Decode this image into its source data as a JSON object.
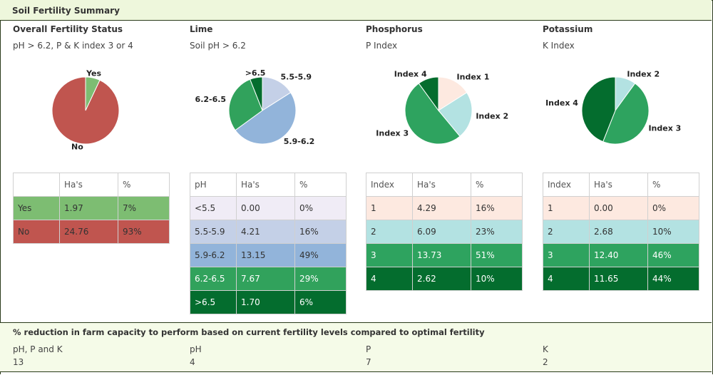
{
  "header": {
    "title": "Soil Fertility Summary"
  },
  "panels": [
    {
      "title": "Overall Fertility Status",
      "subtitle": "pH > 6.2, P & K index 3 or 4",
      "columns": [
        null,
        "Ha's",
        "%"
      ],
      "rows": [
        {
          "label": "Yes",
          "ha": "1.97",
          "pct": 7,
          "pct_label": "7%",
          "color": "#7dbd72",
          "text_color": "#333333"
        },
        {
          "label": "No",
          "ha": "24.76",
          "pct": 93,
          "pct_label": "93%",
          "color": "#c0554f",
          "text_color": "#333333"
        }
      ],
      "pie_labels": [
        "Yes",
        "No"
      ]
    },
    {
      "title": "Lime",
      "subtitle": "Soil pH > 6.2",
      "columns": [
        "pH",
        "Ha's",
        "%"
      ],
      "rows": [
        {
          "label": "<5.5",
          "ha": "0.00",
          "pct": 0,
          "pct_label": "0%",
          "color": "#f0ecf6",
          "text_color": "#333333"
        },
        {
          "label": "5.5-5.9",
          "ha": "4.21",
          "pct": 16,
          "pct_label": "16%",
          "color": "#c4d0e7",
          "text_color": "#333333"
        },
        {
          "label": "5.9-6.2",
          "ha": "13.15",
          "pct": 49,
          "pct_label": "49%",
          "color": "#92b4da",
          "text_color": "#333333"
        },
        {
          "label": "6.2-6.5",
          "ha": "7.67",
          "pct": 29,
          "pct_label": "29%",
          "color": "#31a25c",
          "text_color": "#ffffff"
        },
        {
          "label": ">6.5",
          "ha": "1.70",
          "pct": 6,
          "pct_label": "6%",
          "color": "#046d2e",
          "text_color": "#ffffff"
        }
      ],
      "pie_labels": [
        null,
        "5.5-5.9",
        "5.9-6.2",
        "6.2-6.5",
        ">6.5"
      ]
    },
    {
      "title": "Phosphorus",
      "subtitle": "P Index",
      "columns": [
        "Index",
        "Ha's",
        "%"
      ],
      "rows": [
        {
          "label": "1",
          "ha": "4.29",
          "pct": 16,
          "pct_label": "16%",
          "color": "#fde9e0",
          "text_color": "#333333"
        },
        {
          "label": "2",
          "ha": "6.09",
          "pct": 23,
          "pct_label": "23%",
          "color": "#b3e2e2",
          "text_color": "#333333"
        },
        {
          "label": "3",
          "ha": "13.73",
          "pct": 51,
          "pct_label": "51%",
          "color": "#2ea35f",
          "text_color": "#ffffff"
        },
        {
          "label": "4",
          "ha": "2.62",
          "pct": 10,
          "pct_label": "10%",
          "color": "#046d2e",
          "text_color": "#ffffff"
        }
      ],
      "pie_labels": [
        "Index 1",
        "Index 2",
        "Index 3",
        "Index 4"
      ]
    },
    {
      "title": "Potassium",
      "subtitle": "K Index",
      "columns": [
        "Index",
        "Ha's",
        "%"
      ],
      "rows": [
        {
          "label": "1",
          "ha": "0.00",
          "pct": 0,
          "pct_label": "0%",
          "color": "#fde9e0",
          "text_color": "#333333"
        },
        {
          "label": "2",
          "ha": "2.68",
          "pct": 10,
          "pct_label": "10%",
          "color": "#b3e2e2",
          "text_color": "#333333"
        },
        {
          "label": "3",
          "ha": "12.40",
          "pct": 46,
          "pct_label": "46%",
          "color": "#2ea35f",
          "text_color": "#ffffff"
        },
        {
          "label": "4",
          "ha": "11.65",
          "pct": 44,
          "pct_label": "44%",
          "color": "#046d2e",
          "text_color": "#ffffff"
        }
      ],
      "pie_labels": [
        null,
        "Index 2",
        "Index 3",
        "Index 4"
      ]
    }
  ],
  "reduction": {
    "title": "% reduction in farm capacity to perform based on current fertility levels compared to optimal fertility",
    "items": [
      {
        "label": "pH, P and K",
        "value": 13
      },
      {
        "label": "pH",
        "value": 4
      },
      {
        "label": "P",
        "value": 7
      },
      {
        "label": "K",
        "value": 2
      }
    ]
  }
}
